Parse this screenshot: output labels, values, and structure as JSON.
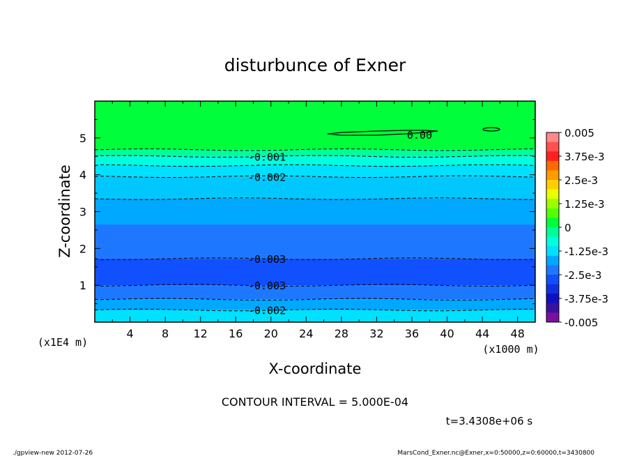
{
  "chart_data": {
    "type": "contour",
    "title": "disturbunce of Exner",
    "xlabel": "X-coordinate",
    "ylabel": "Z-coordinate",
    "x_unit": "(x1000 m)",
    "y_unit": "(x1E4 m)",
    "xlim": [
      0,
      50
    ],
    "ylim": [
      0,
      6
    ],
    "x_ticks": [
      4,
      8,
      12,
      16,
      20,
      24,
      28,
      32,
      36,
      40,
      44,
      48
    ],
    "y_ticks": [
      1,
      2,
      3,
      4,
      5
    ],
    "contour_interval_text": "CONTOUR INTERVAL = 5.000E-04",
    "time_text": "t=3.4308e+06 s",
    "colorbar": {
      "range": [
        -0.005,
        0.005
      ],
      "tick_labels": [
        "0.005",
        "3.75e-3",
        "2.5e-3",
        "1.25e-3",
        "0",
        "-1.25e-3",
        "-2.5e-3",
        "-3.75e-3",
        "-0.005"
      ],
      "colors": [
        "#ff8888",
        "#ff5050",
        "#ff2020",
        "#ff6a00",
        "#ff9a00",
        "#ffd000",
        "#eaff00",
        "#9cff00",
        "#55ff00",
        "#00ff3a",
        "#00ff9a",
        "#00ffe0",
        "#00e0ff",
        "#00a8ff",
        "#1e78ff",
        "#1050ff",
        "#1030e0",
        "#1010c0",
        "#3a10a0",
        "#7a10a0"
      ]
    },
    "bands": [
      {
        "z_top": 6.0,
        "z_bottom": 4.68,
        "color": "#00ff3a"
      },
      {
        "z_top": 4.68,
        "z_bottom": 4.5,
        "color": "#00ff9a"
      },
      {
        "z_top": 4.5,
        "z_bottom": 4.25,
        "color": "#00ffe0"
      },
      {
        "z_top": 4.25,
        "z_bottom": 3.95,
        "color": "#00e0ff"
      },
      {
        "z_top": 3.95,
        "z_bottom": 3.35,
        "color": "#00c8ff"
      },
      {
        "z_top": 3.35,
        "z_bottom": 2.65,
        "color": "#00a8ff"
      },
      {
        "z_top": 2.65,
        "z_bottom": 1.72,
        "color": "#1e78ff"
      },
      {
        "z_top": 1.72,
        "z_bottom": 1.0,
        "color": "#1050ff"
      },
      {
        "z_top": 1.0,
        "z_bottom": 0.62,
        "color": "#1e78ff"
      },
      {
        "z_top": 0.62,
        "z_bottom": 0.33,
        "color": "#00a8ff"
      },
      {
        "z_top": 0.33,
        "z_bottom": 0.0,
        "color": "#00e0ff"
      }
    ],
    "contours": [
      {
        "z": 4.68,
        "label": ""
      },
      {
        "z": 4.5,
        "label": "-0.001"
      },
      {
        "z": 4.25,
        "label": ""
      },
      {
        "z": 3.95,
        "label": "-0.002"
      },
      {
        "z": 3.35,
        "label": ""
      },
      {
        "z": 1.72,
        "label": "-0.003"
      },
      {
        "z": 1.0,
        "label": "-0.003"
      },
      {
        "z": 0.62,
        "label": ""
      },
      {
        "z": 0.33,
        "label": "-0.002"
      }
    ],
    "zero_contour_label": "0.00"
  },
  "footer": {
    "left": "./gpview-new   2012-07-26",
    "right": "MarsCond_Exner.nc@Exner,x=0:50000,z=0:60000,t=3430800"
  }
}
